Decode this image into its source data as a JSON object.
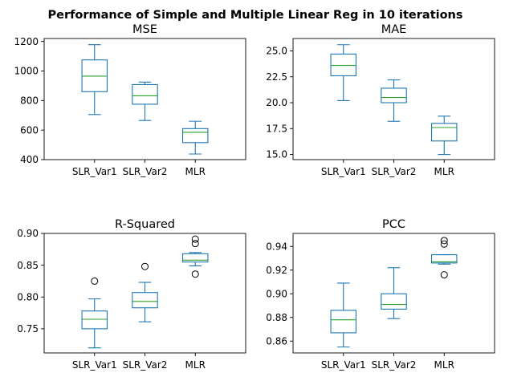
{
  "title": "Performance of Simple and Multiple Linear Reg in 10 iterations",
  "colors": {
    "box": "#1f77b4",
    "median": "#2ca02c",
    "flier": "#000000",
    "axes": "#000000"
  },
  "chart_data": [
    {
      "type": "box",
      "title": "MSE",
      "categories": [
        "SLR_Var1",
        "SLR_Var2",
        "MLR"
      ],
      "ylim": [
        400,
        1220
      ],
      "yticks": [
        400,
        600,
        800,
        1000,
        1200
      ],
      "yticklabels": [
        "400",
        "600",
        "800",
        "1000",
        "1200"
      ],
      "boxes": [
        {
          "whislo": 705,
          "q1": 860,
          "med": 965,
          "q3": 1075,
          "whishi": 1178,
          "fliers": []
        },
        {
          "whislo": 665,
          "q1": 775,
          "med": 832,
          "q3": 908,
          "whishi": 925,
          "fliers": []
        },
        {
          "whislo": 438,
          "q1": 515,
          "med": 585,
          "q3": 610,
          "whishi": 660,
          "fliers": []
        }
      ]
    },
    {
      "type": "box",
      "title": "MAE",
      "categories": [
        "SLR_Var1",
        "SLR_Var2",
        "MLR"
      ],
      "ylim": [
        14.5,
        26.2
      ],
      "yticks": [
        15.0,
        17.5,
        20.0,
        22.5,
        25.0
      ],
      "yticklabels": [
        "15.0",
        "17.5",
        "20.0",
        "22.5",
        "25.0"
      ],
      "boxes": [
        {
          "whislo": 20.2,
          "q1": 22.6,
          "med": 23.6,
          "q3": 24.7,
          "whishi": 25.6,
          "fliers": []
        },
        {
          "whislo": 18.2,
          "q1": 20.0,
          "med": 20.5,
          "q3": 21.4,
          "whishi": 22.2,
          "fliers": []
        },
        {
          "whislo": 15.0,
          "q1": 16.3,
          "med": 17.6,
          "q3": 18.0,
          "whishi": 18.7,
          "fliers": []
        }
      ]
    },
    {
      "type": "box",
      "title": "R-Squared",
      "categories": [
        "SLR_Var1",
        "SLR_Var2",
        "MLR"
      ],
      "ylim": [
        0.712,
        0.9
      ],
      "yticks": [
        0.75,
        0.8,
        0.85,
        0.9
      ],
      "yticklabels": [
        "0.75",
        "0.80",
        "0.85",
        "0.90"
      ],
      "boxes": [
        {
          "whislo": 0.72,
          "q1": 0.75,
          "med": 0.765,
          "q3": 0.778,
          "whishi": 0.797,
          "fliers": [
            0.825
          ]
        },
        {
          "whislo": 0.761,
          "q1": 0.783,
          "med": 0.793,
          "q3": 0.807,
          "whishi": 0.823,
          "fliers": [
            0.848
          ]
        },
        {
          "whislo": 0.849,
          "q1": 0.855,
          "med": 0.858,
          "q3": 0.868,
          "whishi": 0.87,
          "fliers": [
            0.836,
            0.884,
            0.891
          ]
        }
      ]
    },
    {
      "type": "box",
      "title": "PCC",
      "categories": [
        "SLR_Var1",
        "SLR_Var2",
        "MLR"
      ],
      "ylim": [
        0.85,
        0.951
      ],
      "yticks": [
        0.86,
        0.88,
        0.9,
        0.92,
        0.94
      ],
      "yticklabels": [
        "0.86",
        "0.88",
        "0.90",
        "0.92",
        "0.94"
      ],
      "boxes": [
        {
          "whislo": 0.855,
          "q1": 0.867,
          "med": 0.878,
          "q3": 0.886,
          "whishi": 0.909,
          "fliers": []
        },
        {
          "whislo": 0.879,
          "q1": 0.887,
          "med": 0.891,
          "q3": 0.9,
          "whishi": 0.922,
          "fliers": []
        },
        {
          "whislo": 0.925,
          "q1": 0.926,
          "med": 0.927,
          "q3": 0.933,
          "whishi": 0.933,
          "fliers": [
            0.916,
            0.942,
            0.945
          ]
        }
      ]
    }
  ]
}
